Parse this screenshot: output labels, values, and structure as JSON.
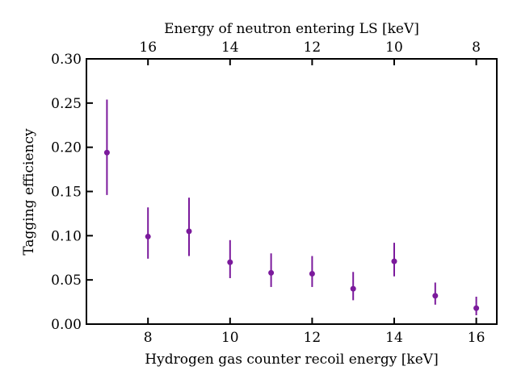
{
  "chart_data": {
    "type": "scatter",
    "title": "",
    "xlabel": "Hydrogen gas counter recoil energy [keV]",
    "ylabel": "Tagging efficiency",
    "top_xlabel": "Energy of neutron entering LS [keV]",
    "xlim": [
      6.5,
      16.5
    ],
    "ylim": [
      0.0,
      0.3
    ],
    "xticks": [
      8,
      10,
      12,
      14,
      16
    ],
    "xtick_labels": [
      "8",
      "10",
      "12",
      "14",
      "16"
    ],
    "yticks": [
      0.0,
      0.05,
      0.1,
      0.15,
      0.2,
      0.25,
      0.3
    ],
    "ytick_labels": [
      "0.00",
      "0.05",
      "0.10",
      "0.15",
      "0.20",
      "0.25",
      "0.30"
    ],
    "top_xticks_at_bottom_values": [
      8,
      10,
      12,
      14,
      16
    ],
    "top_xtick_labels": [
      "16",
      "14",
      "12",
      "10",
      "8"
    ],
    "grid": false,
    "color": "#7b1a9c",
    "series": [
      {
        "name": "tagging efficiency",
        "x": [
          7,
          8,
          9,
          10,
          11,
          12,
          13,
          14,
          15,
          16
        ],
        "y": [
          0.194,
          0.099,
          0.105,
          0.07,
          0.058,
          0.057,
          0.04,
          0.071,
          0.032,
          0.018
        ],
        "yerr_low": [
          0.146,
          0.074,
          0.077,
          0.052,
          0.042,
          0.042,
          0.027,
          0.054,
          0.022,
          0.01
        ],
        "yerr_high": [
          0.254,
          0.132,
          0.143,
          0.095,
          0.08,
          0.077,
          0.059,
          0.092,
          0.047,
          0.031
        ]
      }
    ]
  }
}
